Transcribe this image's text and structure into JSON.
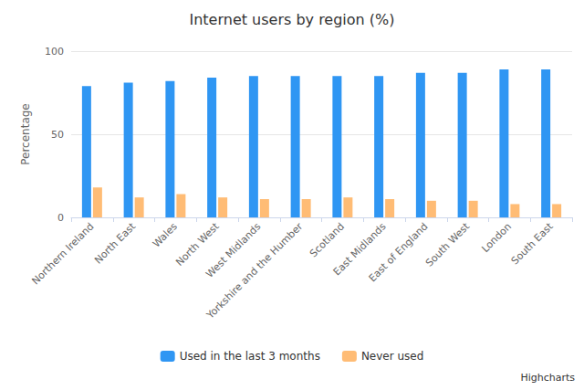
{
  "chart_data": {
    "type": "bar",
    "title": "Internet users by region (%)",
    "y_label": "Percentage",
    "categories": [
      "Northern Ireland",
      "North East",
      "Wales",
      "North West",
      "West Midlands",
      "Yorkshire and the Humber",
      "Scotland",
      "East Midlands",
      "East of England",
      "South West",
      "London",
      "South East"
    ],
    "series": [
      {
        "name": "Used in the last 3 months",
        "color": "#2f96f3",
        "values": [
          79,
          81,
          82,
          84,
          85,
          85,
          85,
          85,
          87,
          87,
          89,
          89
        ]
      },
      {
        "name": "Never used",
        "color": "#ffbc75",
        "values": [
          18,
          12,
          14,
          12,
          11,
          11,
          12,
          11,
          10,
          10,
          8,
          8
        ]
      }
    ],
    "ylim": [
      0,
      100
    ],
    "yticks": [
      0,
      50,
      100
    ],
    "grid": true,
    "legend": "bottom",
    "annotations": [
      "Highcharts"
    ]
  }
}
